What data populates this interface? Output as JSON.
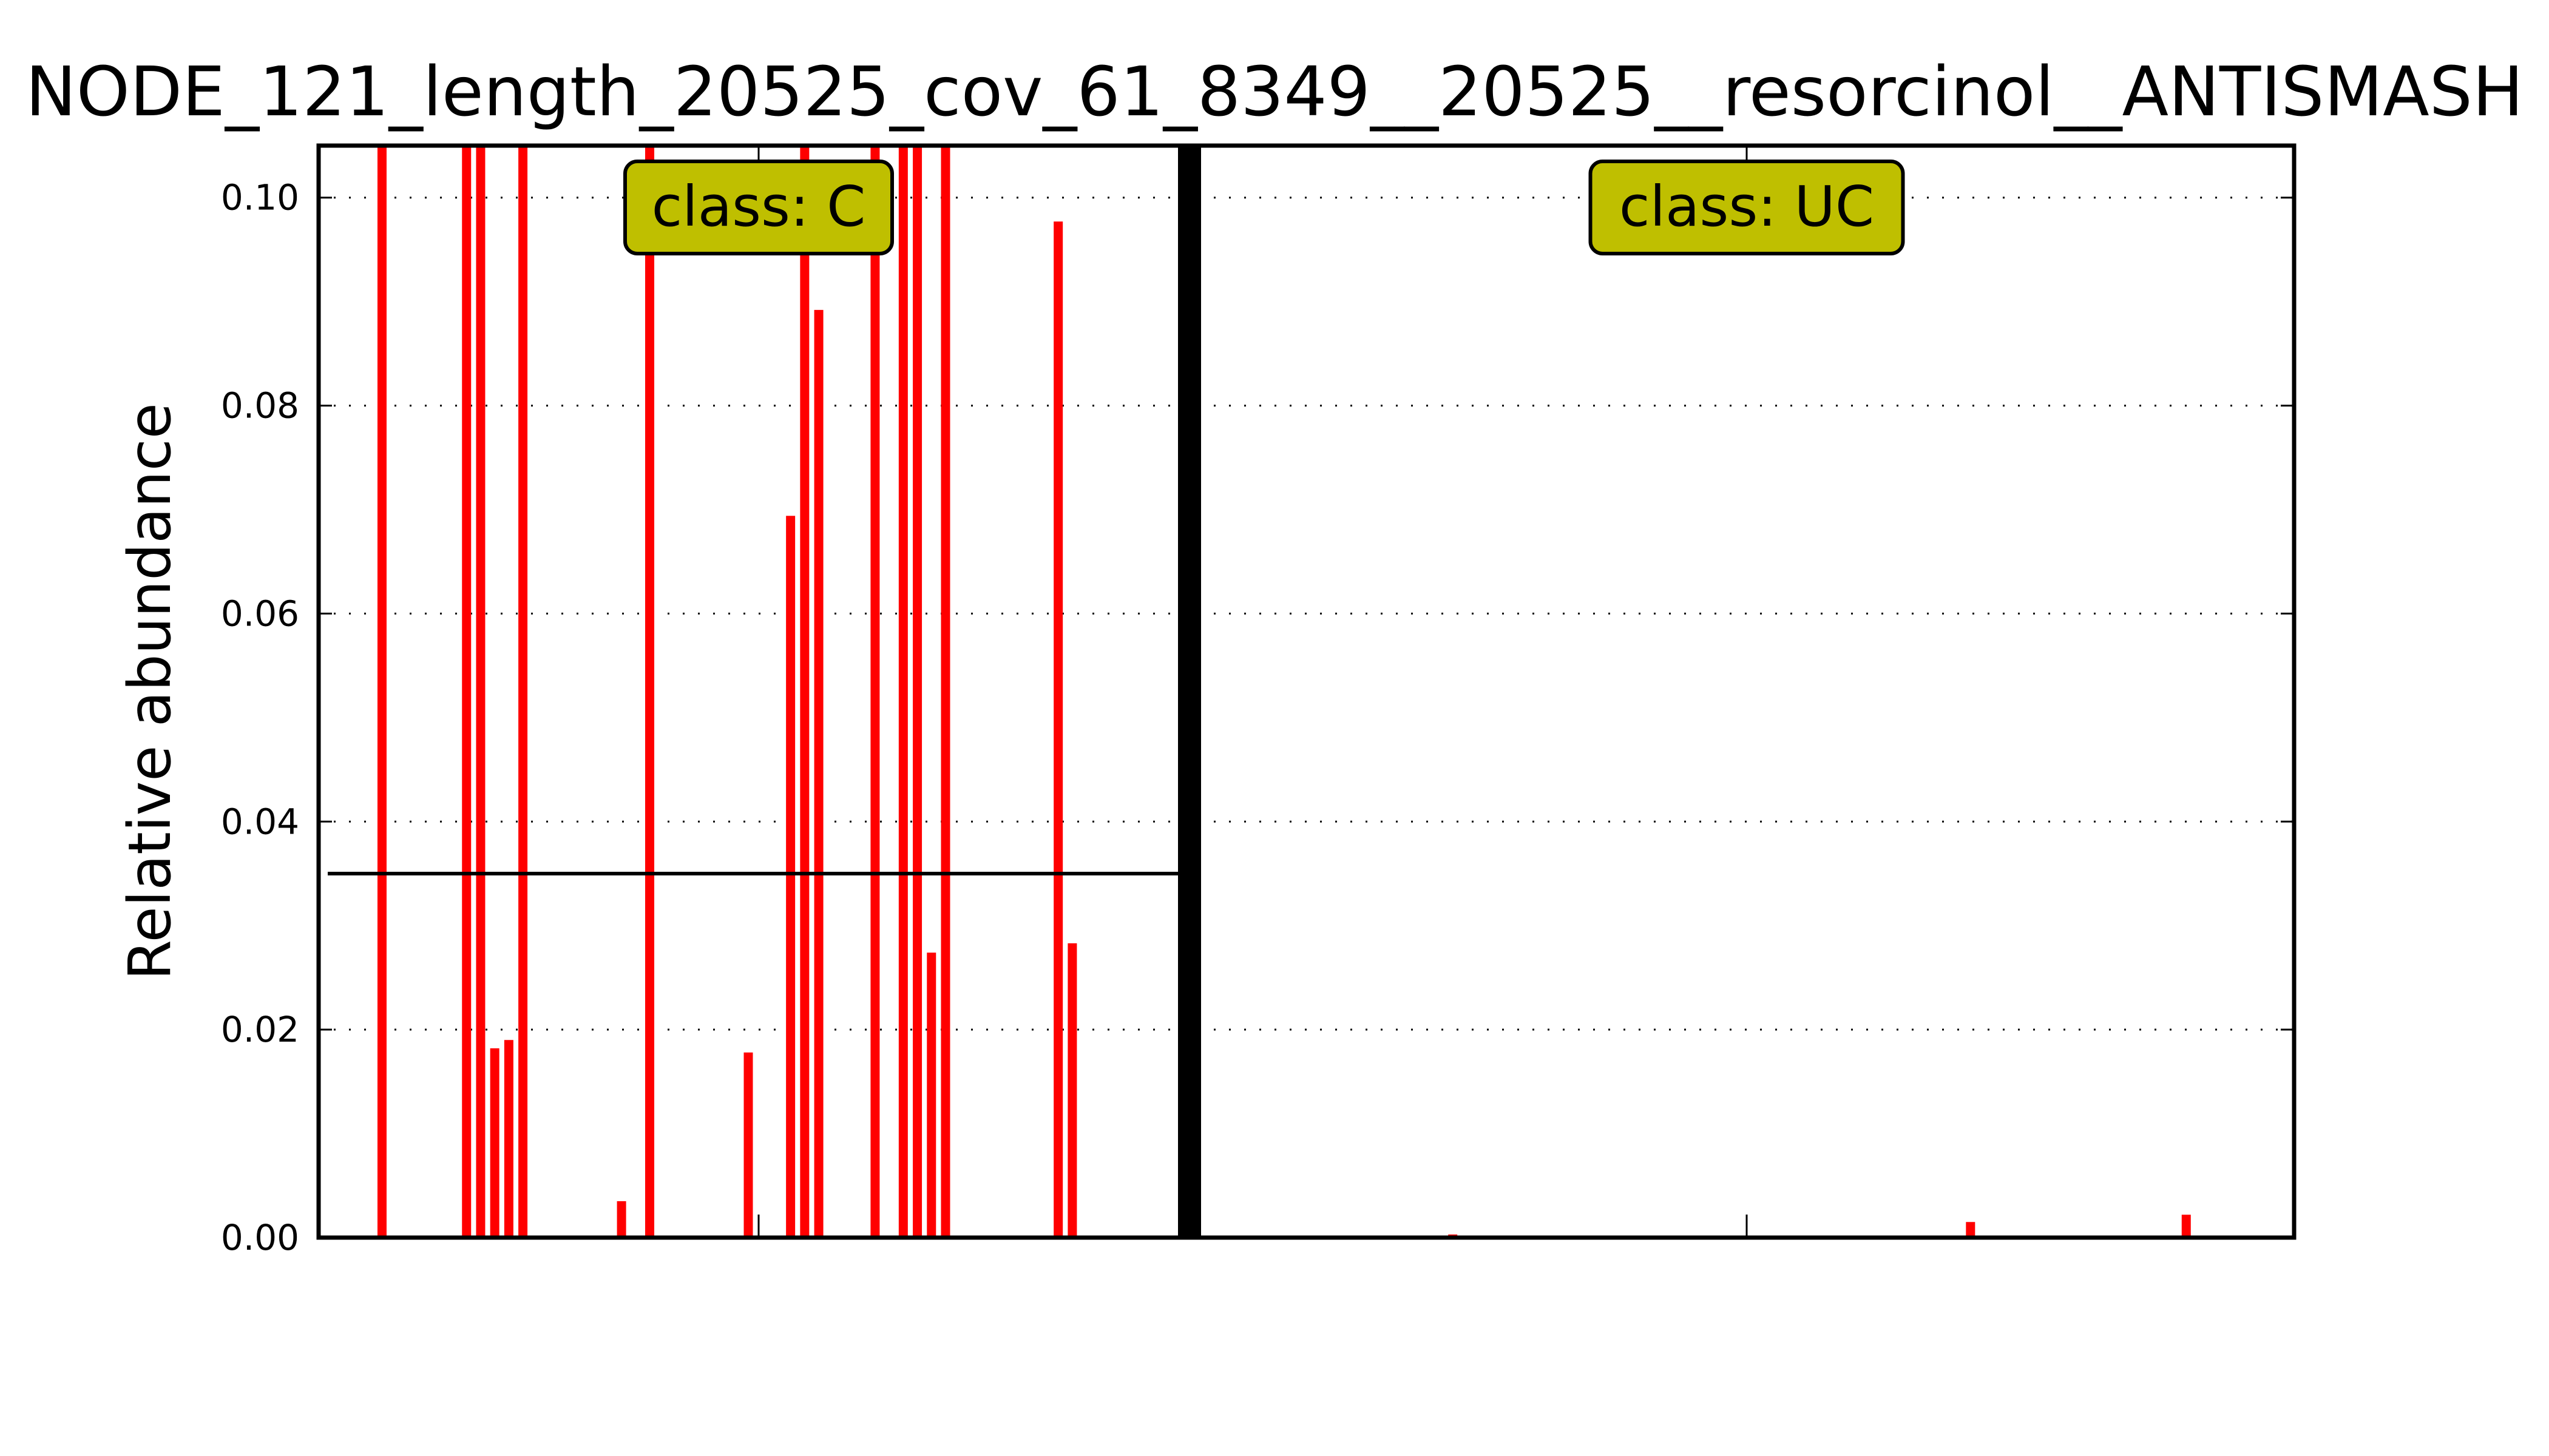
{
  "chart_data": {
    "type": "bar",
    "title": "NODE_121_length_20525_cov_61_8349__20525__resorcinol__ANTISMASH",
    "xlabel": "",
    "ylabel": "Relative abundance",
    "ylim": [
      0,
      0.105
    ],
    "yticks": [
      "0.00",
      "0.02",
      "0.04",
      "0.06",
      "0.08",
      "0.10"
    ],
    "grid": "horizontal dotted",
    "bar_color": "#ff0000",
    "panels": [
      {
        "class_label": "class: C",
        "box_color": "#bfbf00",
        "threshold": 0.035,
        "bars": [
          {
            "pos": 4,
            "value": 0.105
          },
          {
            "pos": 10,
            "value": 0.105
          },
          {
            "pos": 11,
            "value": 0.105
          },
          {
            "pos": 12,
            "value": 0.0182
          },
          {
            "pos": 13,
            "value": 0.019
          },
          {
            "pos": 14,
            "value": 0.105
          },
          {
            "pos": 21,
            "value": 0.0035
          },
          {
            "pos": 23,
            "value": 0.105
          },
          {
            "pos": 30,
            "value": 0.0178
          },
          {
            "pos": 33,
            "value": 0.0694
          },
          {
            "pos": 34,
            "value": 0.105
          },
          {
            "pos": 35,
            "value": 0.0892
          },
          {
            "pos": 39,
            "value": 0.105
          },
          {
            "pos": 41,
            "value": 0.105
          },
          {
            "pos": 42,
            "value": 0.105
          },
          {
            "pos": 43,
            "value": 0.0274
          },
          {
            "pos": 44,
            "value": 0.105
          },
          {
            "pos": 52,
            "value": 0.0977
          },
          {
            "pos": 53,
            "value": 0.0283
          },
          {
            "pos": 58,
            "value": 0.0002
          }
        ]
      },
      {
        "class_label": "class: UC",
        "box_color": "#bfbf00",
        "threshold": null,
        "bars": [
          {
            "pos": 17,
            "value": 0.0003
          },
          {
            "pos": 53,
            "value": 0.0015
          },
          {
            "pos": 68,
            "value": 0.0022
          }
        ]
      }
    ]
  }
}
